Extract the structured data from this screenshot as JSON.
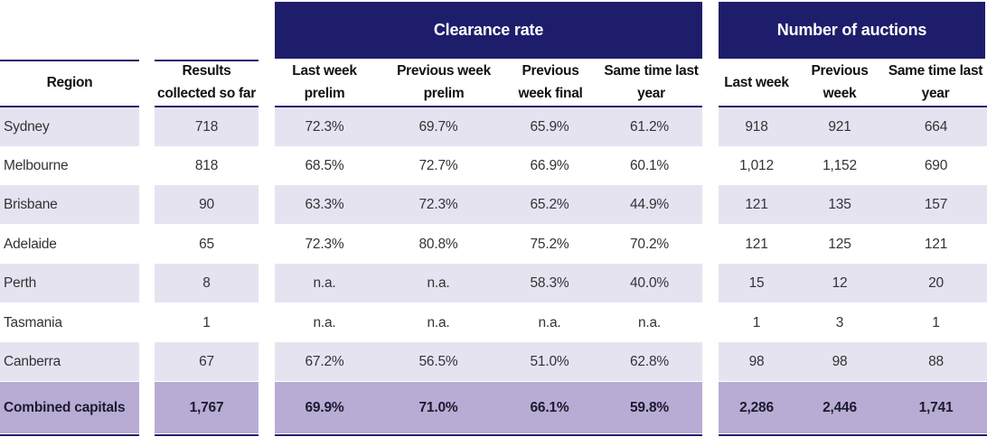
{
  "groups": {
    "clearance_rate": "Clearance rate",
    "number_of_auctions": "Number of auctions"
  },
  "columns": {
    "region": "Region",
    "results": [
      "Results",
      "collected so far"
    ],
    "cr_last_week": [
      "Last week",
      "prelim"
    ],
    "cr_prev_week_prelim": [
      "Previous week",
      "prelim"
    ],
    "cr_prev_week_final": [
      "Previous",
      "week final"
    ],
    "cr_same_time": [
      "Same time last",
      "year"
    ],
    "na_last_week": [
      "Last week"
    ],
    "na_prev_week": [
      "Previous",
      "week"
    ],
    "na_same_time": [
      "Same time last",
      "year"
    ]
  },
  "rows": [
    {
      "region": "Sydney",
      "results": "718",
      "cr": [
        "72.3%",
        "69.7%",
        "65.9%",
        "61.2%"
      ],
      "na": [
        "918",
        "921",
        "664"
      ]
    },
    {
      "region": "Melbourne",
      "results": "818",
      "cr": [
        "68.5%",
        "72.7%",
        "66.9%",
        "60.1%"
      ],
      "na": [
        "1,012",
        "1,152",
        "690"
      ]
    },
    {
      "region": "Brisbane",
      "results": "90",
      "cr": [
        "63.3%",
        "72.3%",
        "65.2%",
        "44.9%"
      ],
      "na": [
        "121",
        "135",
        "157"
      ]
    },
    {
      "region": "Adelaide",
      "results": "65",
      "cr": [
        "72.3%",
        "80.8%",
        "75.2%",
        "70.2%"
      ],
      "na": [
        "121",
        "125",
        "121"
      ]
    },
    {
      "region": "Perth",
      "results": "8",
      "cr": [
        "n.a.",
        "n.a.",
        "58.3%",
        "40.0%"
      ],
      "na": [
        "15",
        "12",
        "20"
      ]
    },
    {
      "region": "Tasmania",
      "results": "1",
      "cr": [
        "n.a.",
        "n.a.",
        "n.a.",
        "n.a."
      ],
      "na": [
        "1",
        "3",
        "1"
      ]
    },
    {
      "region": "Canberra",
      "results": "67",
      "cr": [
        "67.2%",
        "56.5%",
        "51.0%",
        "62.8%"
      ],
      "na": [
        "98",
        "98",
        "88"
      ]
    }
  ],
  "total": {
    "region": "Combined capitals",
    "results": "1,767",
    "cr": [
      "69.9%",
      "71.0%",
      "66.1%",
      "59.8%"
    ],
    "na": [
      "2,286",
      "2,446",
      "1,741"
    ]
  },
  "colors": {
    "header_bg": "#1e1d6b",
    "row_shade": "#e6e3f1",
    "total_bg": "#b9acd4"
  }
}
